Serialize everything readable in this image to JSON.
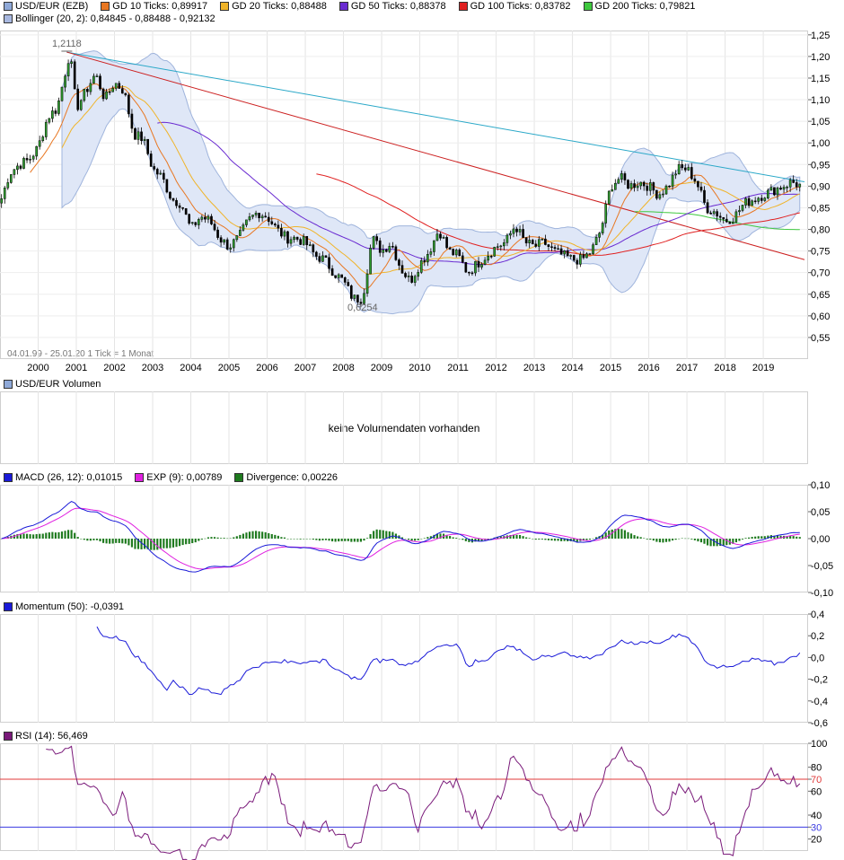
{
  "legend": {
    "row1": [
      {
        "label": "USD/EUR (EZB)",
        "color": "#8fa9d8"
      },
      {
        "label": "GD 10 Ticks: 0,89917",
        "color": "#e87722"
      },
      {
        "label": "GD 20 Ticks: 0,88488",
        "color": "#f0b429"
      },
      {
        "label": "GD 50 Ticks: 0,88378",
        "color": "#6a2bd1"
      },
      {
        "label": "GD 100 Ticks: 0,83782",
        "color": "#e02020"
      },
      {
        "label": "GD 200 Ticks: 0,79821",
        "color": "#3ec83e"
      }
    ],
    "row2": [
      {
        "label": "Bollinger (20, 2): 0,84845 - 0,88488 - 0,92132",
        "color": "#a8b8e0"
      }
    ]
  },
  "annotations": {
    "high": "1,2118",
    "low": "0,6254",
    "footer": "04.01.99 - 25.01.20    1 Tick = 1 Monat"
  },
  "volume_panel": {
    "title": "USD/EUR Volumen",
    "message": "keine Volumendaten vorhanden",
    "color": "#8fa9d8"
  },
  "macd_panel": {
    "legend": [
      {
        "label": "MACD (26, 12): 0,01015",
        "color": "#1a1ad8"
      },
      {
        "label": "EXP (9): 0,00789",
        "color": "#e020e0"
      },
      {
        "label": "Divergence: 0,00226",
        "color": "#1e7a1e"
      }
    ]
  },
  "momentum_panel": {
    "legend": {
      "label": "Momentum (50): -0,0391",
      "color": "#1a1ad8"
    }
  },
  "rsi_panel": {
    "legend": {
      "label": "RSI (14): 56,469",
      "color": "#7a1a7a"
    }
  },
  "chart_data": [
    {
      "type": "candlestick",
      "title": "USD/EUR (EZB)",
      "x_labels": [
        "2000",
        "2001",
        "2002",
        "2003",
        "2004",
        "2005",
        "2006",
        "2007",
        "2008",
        "2009",
        "2010",
        "2011",
        "2012",
        "2013",
        "2014",
        "2015",
        "2016",
        "2017",
        "2018",
        "2019"
      ],
      "y_ticks": [
        "0,55",
        "0,60",
        "0,65",
        "0,70",
        "0,75",
        "0,80",
        "0,85",
        "0,90",
        "0,95",
        "1,00",
        "1,05",
        "1,10",
        "1,15",
        "1,20",
        "1,25"
      ],
      "ylim": [
        0.5,
        1.26
      ],
      "xlim": [
        1999.0,
        2020.08
      ],
      "close_series": [
        [
          1999.0,
          0.86
        ],
        [
          1999.25,
          0.93
        ],
        [
          1999.5,
          0.95
        ],
        [
          1999.75,
          0.96
        ],
        [
          2000.0,
          0.99
        ],
        [
          2000.25,
          1.06
        ],
        [
          2000.5,
          1.08
        ],
        [
          2000.75,
          1.18
        ],
        [
          2000.83,
          1.21
        ],
        [
          2001.0,
          1.08
        ],
        [
          2001.25,
          1.12
        ],
        [
          2001.5,
          1.16
        ],
        [
          2001.75,
          1.1
        ],
        [
          2002.0,
          1.14
        ],
        [
          2002.25,
          1.12
        ],
        [
          2002.5,
          1.02
        ],
        [
          2002.75,
          1.01
        ],
        [
          2003.0,
          0.94
        ],
        [
          2003.25,
          0.92
        ],
        [
          2003.5,
          0.87
        ],
        [
          2003.75,
          0.86
        ],
        [
          2004.0,
          0.8
        ],
        [
          2004.25,
          0.83
        ],
        [
          2004.5,
          0.82
        ],
        [
          2004.75,
          0.78
        ],
        [
          2005.0,
          0.76
        ],
        [
          2005.25,
          0.78
        ],
        [
          2005.5,
          0.82
        ],
        [
          2005.75,
          0.84
        ],
        [
          2006.0,
          0.83
        ],
        [
          2006.25,
          0.8
        ],
        [
          2006.5,
          0.78
        ],
        [
          2006.75,
          0.78
        ],
        [
          2007.0,
          0.77
        ],
        [
          2007.25,
          0.74
        ],
        [
          2007.5,
          0.73
        ],
        [
          2007.75,
          0.7
        ],
        [
          2008.0,
          0.68
        ],
        [
          2008.25,
          0.64
        ],
        [
          2008.5,
          0.64
        ],
        [
          2008.75,
          0.78
        ],
        [
          2009.0,
          0.75
        ],
        [
          2009.25,
          0.77
        ],
        [
          2009.5,
          0.71
        ],
        [
          2009.75,
          0.68
        ],
        [
          2010.0,
          0.72
        ],
        [
          2010.25,
          0.75
        ],
        [
          2010.5,
          0.8
        ],
        [
          2010.75,
          0.75
        ],
        [
          2011.0,
          0.74
        ],
        [
          2011.25,
          0.7
        ],
        [
          2011.5,
          0.72
        ],
        [
          2011.75,
          0.74
        ],
        [
          2012.0,
          0.76
        ],
        [
          2012.25,
          0.77
        ],
        [
          2012.5,
          0.81
        ],
        [
          2012.75,
          0.77
        ],
        [
          2013.0,
          0.76
        ],
        [
          2013.25,
          0.77
        ],
        [
          2013.5,
          0.75
        ],
        [
          2013.75,
          0.74
        ],
        [
          2014.0,
          0.73
        ],
        [
          2014.25,
          0.73
        ],
        [
          2014.5,
          0.75
        ],
        [
          2014.75,
          0.8
        ],
        [
          2015.0,
          0.9
        ],
        [
          2015.25,
          0.92
        ],
        [
          2015.5,
          0.9
        ],
        [
          2015.75,
          0.91
        ],
        [
          2016.0,
          0.9
        ],
        [
          2016.25,
          0.88
        ],
        [
          2016.5,
          0.9
        ],
        [
          2016.75,
          0.94
        ],
        [
          2017.0,
          0.94
        ],
        [
          2017.25,
          0.91
        ],
        [
          2017.5,
          0.85
        ],
        [
          2017.75,
          0.84
        ],
        [
          2018.0,
          0.82
        ],
        [
          2018.25,
          0.83
        ],
        [
          2018.5,
          0.86
        ],
        [
          2018.75,
          0.87
        ],
        [
          2019.0,
          0.88
        ],
        [
          2019.25,
          0.89
        ],
        [
          2019.5,
          0.9
        ],
        [
          2019.75,
          0.91
        ],
        [
          2020.0,
          0.9
        ]
      ],
      "trendlines": [
        {
          "name": "cyan",
          "color": "#2aa8c8",
          "points": [
            [
              2000.75,
              1.21
            ],
            [
              2020.08,
              0.91
            ]
          ]
        },
        {
          "name": "red",
          "color": "#cc2020",
          "points": [
            [
              2000.75,
              1.21
            ],
            [
              2020.08,
              0.73
            ]
          ]
        }
      ],
      "high_annotation": 1.2118,
      "low_annotation": 0.6254
    },
    {
      "type": "line",
      "title": "MACD (26, 12)",
      "y_ticks": [
        "0,10",
        "0,05",
        "0,00",
        "-0,05",
        "-0,10"
      ],
      "ylim": [
        -0.1,
        0.1
      ]
    },
    {
      "type": "line",
      "title": "Momentum (50)",
      "y_ticks": [
        "0,4",
        "0,2",
        "0,0",
        "-0,2",
        "-0,4",
        "-0,6"
      ],
      "ylim": [
        -0.6,
        0.4
      ]
    },
    {
      "type": "line",
      "title": "RSI (14)",
      "y_ticks": [
        "100",
        "80",
        "70",
        "60",
        "40",
        "30",
        "20"
      ],
      "ylim": [
        10,
        100
      ],
      "overbought": 70,
      "oversold": 30
    }
  ]
}
